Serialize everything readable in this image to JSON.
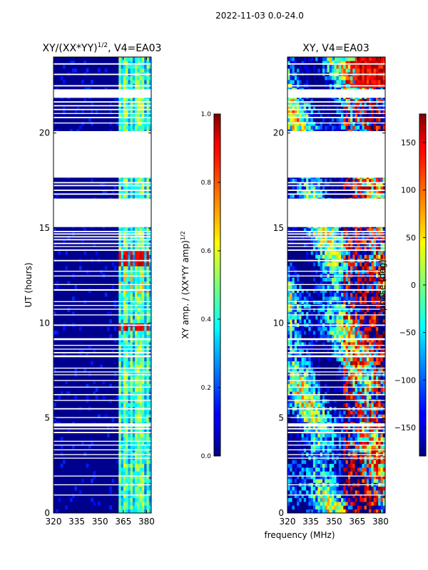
{
  "figure": {
    "suptitle": "2022-11-03 0.0-24.0",
    "xlabel_shared": "frequency (MHz)"
  },
  "chart_data": [
    {
      "type": "heatmap",
      "title_main": "XY/(XX*YY)",
      "title_sup": "1/2",
      "title_tail": ", V4=EA03",
      "xlabel": "",
      "ylabel": "UT (hours)",
      "xlim": [
        320,
        383
      ],
      "ylim": [
        0,
        24
      ],
      "xticks": [
        320,
        335,
        350,
        365,
        380
      ],
      "yticks": [
        0,
        5,
        10,
        15,
        20
      ],
      "colorbar": {
        "label_main": "XY amp. / (XX*YY amp)",
        "label_sup": "1/2",
        "range": [
          0.0,
          1.0
        ],
        "ticks": [
          "0.0",
          "0.2",
          "0.4",
          "0.6",
          "0.8",
          "1.0"
        ],
        "colormap": "jet"
      },
      "gaps_hours": [
        [
          0.92,
          0.97
        ],
        [
          1.46,
          1.51
        ],
        [
          1.92,
          1.97
        ],
        [
          2.86,
          2.91
        ],
        [
          3.05,
          3.1
        ],
        [
          3.3,
          3.35
        ],
        [
          3.55,
          3.6
        ],
        [
          3.75,
          3.8
        ],
        [
          4.2,
          4.27
        ],
        [
          4.4,
          4.47
        ],
        [
          4.55,
          4.72
        ],
        [
          5.0,
          5.05
        ],
        [
          5.45,
          5.52
        ],
        [
          5.9,
          5.95
        ],
        [
          6.2,
          6.26
        ],
        [
          6.6,
          6.65
        ],
        [
          6.95,
          7.0
        ],
        [
          7.25,
          7.3
        ],
        [
          7.4,
          7.45
        ],
        [
          7.6,
          7.65
        ],
        [
          8.2,
          8.3
        ],
        [
          8.4,
          8.47
        ],
        [
          8.6,
          8.65
        ],
        [
          8.8,
          8.85
        ],
        [
          9.1,
          9.2
        ],
        [
          9.85,
          9.92
        ],
        [
          10.4,
          10.45
        ],
        [
          10.7,
          10.75
        ],
        [
          10.9,
          10.95
        ],
        [
          11.1,
          11.15
        ],
        [
          11.7,
          11.78
        ],
        [
          12.0,
          12.05
        ],
        [
          12.45,
          12.5
        ],
        [
          12.7,
          12.75
        ],
        [
          13.25,
          13.32
        ],
        [
          13.8,
          13.87
        ],
        [
          14.0,
          14.05
        ],
        [
          14.15,
          14.22
        ],
        [
          14.35,
          14.42
        ],
        [
          14.5,
          14.57
        ],
        [
          14.65,
          14.72
        ],
        [
          14.78,
          14.85
        ],
        [
          15.05,
          16.55
        ],
        [
          16.75,
          16.82
        ],
        [
          16.95,
          17.02
        ],
        [
          17.2,
          17.27
        ],
        [
          17.35,
          17.42
        ],
        [
          17.65,
          20.1
        ],
        [
          20.5,
          20.55
        ],
        [
          20.78,
          20.85
        ],
        [
          21.0,
          21.05
        ],
        [
          21.2,
          21.27
        ],
        [
          21.4,
          21.47
        ],
        [
          21.6,
          21.67
        ],
        [
          21.85,
          22.3
        ],
        [
          22.45,
          22.52
        ],
        [
          23.05,
          23.12
        ],
        [
          23.6,
          23.67
        ]
      ]
    },
    {
      "type": "heatmap",
      "title_main": "XY, V4=EA03",
      "xlabel": "frequency (MHz)",
      "ylabel": "",
      "xlim": [
        320,
        383
      ],
      "ylim": [
        0,
        24
      ],
      "xticks": [
        320,
        335,
        350,
        365,
        380
      ],
      "yticks": [
        0,
        5,
        10,
        15,
        20
      ],
      "colorbar": {
        "label_main": "phase (deg)",
        "range": [
          -180,
          180
        ],
        "ticks": [
          "−150",
          "−100",
          "−50",
          "0",
          "50",
          "100",
          "150"
        ],
        "tick_values": [
          -150,
          -100,
          -50,
          0,
          50,
          100,
          150
        ],
        "colormap": "jet"
      },
      "gaps_hours": [
        [
          0.92,
          0.97
        ],
        [
          1.46,
          1.51
        ],
        [
          1.92,
          1.97
        ],
        [
          2.86,
          2.91
        ],
        [
          3.05,
          3.1
        ],
        [
          3.3,
          3.35
        ],
        [
          3.55,
          3.6
        ],
        [
          3.75,
          3.8
        ],
        [
          4.2,
          4.27
        ],
        [
          4.4,
          4.47
        ],
        [
          4.55,
          4.72
        ],
        [
          5.0,
          5.05
        ],
        [
          5.45,
          5.52
        ],
        [
          5.9,
          5.95
        ],
        [
          6.2,
          6.26
        ],
        [
          6.6,
          6.65
        ],
        [
          6.95,
          7.0
        ],
        [
          7.25,
          7.3
        ],
        [
          7.4,
          7.45
        ],
        [
          7.6,
          7.65
        ],
        [
          8.2,
          8.3
        ],
        [
          8.4,
          8.47
        ],
        [
          8.6,
          8.65
        ],
        [
          8.8,
          8.85
        ],
        [
          9.1,
          9.2
        ],
        [
          9.85,
          9.92
        ],
        [
          10.4,
          10.45
        ],
        [
          10.7,
          10.75
        ],
        [
          10.9,
          10.95
        ],
        [
          11.1,
          11.15
        ],
        [
          11.7,
          11.78
        ],
        [
          12.0,
          12.05
        ],
        [
          12.45,
          12.5
        ],
        [
          12.7,
          12.75
        ],
        [
          13.25,
          13.32
        ],
        [
          13.8,
          13.87
        ],
        [
          14.0,
          14.05
        ],
        [
          14.15,
          14.22
        ],
        [
          14.35,
          14.42
        ],
        [
          14.5,
          14.57
        ],
        [
          14.65,
          14.72
        ],
        [
          14.78,
          14.85
        ],
        [
          15.05,
          16.55
        ],
        [
          16.75,
          16.82
        ],
        [
          16.95,
          17.02
        ],
        [
          17.2,
          17.27
        ],
        [
          17.35,
          17.42
        ],
        [
          17.65,
          20.1
        ],
        [
          20.5,
          20.55
        ],
        [
          20.78,
          20.85
        ],
        [
          21.0,
          21.05
        ],
        [
          21.2,
          21.27
        ],
        [
          21.4,
          21.47
        ],
        [
          21.6,
          21.67
        ],
        [
          21.85,
          22.3
        ],
        [
          22.45,
          22.52
        ],
        [
          23.05,
          23.12
        ],
        [
          23.6,
          23.67
        ]
      ]
    }
  ]
}
